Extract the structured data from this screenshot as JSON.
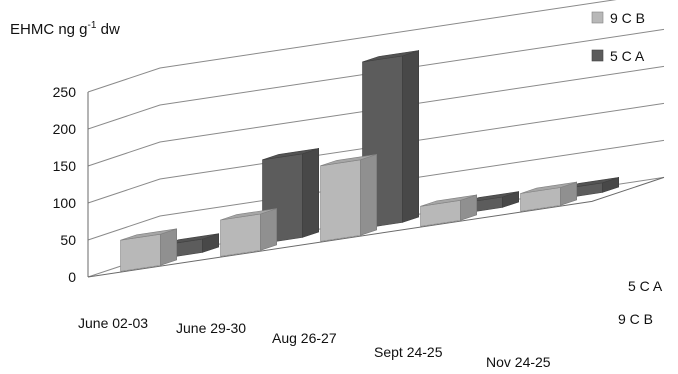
{
  "chart_data": {
    "type": "bar",
    "style": "3d-column",
    "ylabel": "EHMC  ng g",
    "ylabel_sup": "-1",
    "ylabel_suffix": " dw",
    "ylim": [
      0,
      250
    ],
    "yticks": [
      "0",
      "50",
      "100",
      "150",
      "200",
      "250"
    ],
    "grid": true,
    "legend_position": "top-right",
    "categories": [
      "June 02-03",
      "June 29-30",
      "Aug 26-27",
      "Sept 24-25",
      "Nov 24-25"
    ],
    "series": [
      {
        "name": "9 C B",
        "color": "#b8b8b8",
        "values": [
          42,
          49,
          102,
          27,
          24
        ]
      },
      {
        "name": "5 C A",
        "color": "#5c5c5c",
        "values": [
          18,
          113,
          225,
          14,
          13
        ]
      }
    ],
    "depth_labels": [
      "5 C A",
      "9 C B"
    ]
  }
}
